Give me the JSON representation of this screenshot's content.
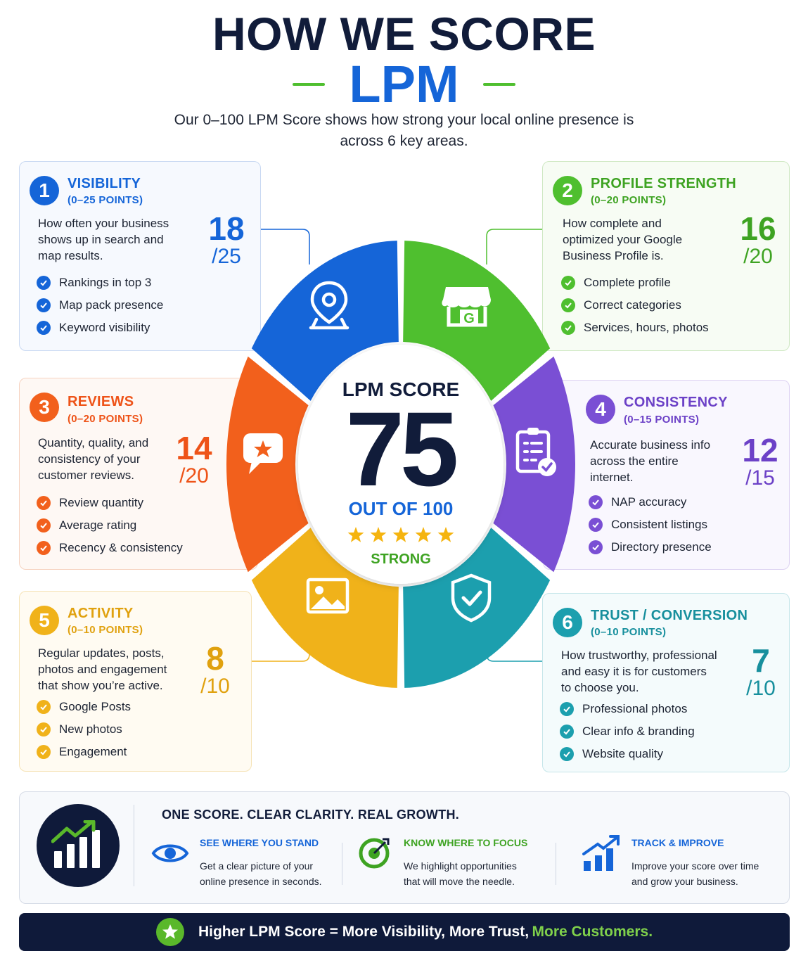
{
  "header": {
    "title_line1": "HOW WE SCORE",
    "title_line2": "LPM",
    "subtitle_line1": "Our 0–100 LPM Score shows how strong your local online presence is",
    "subtitle_line2": "across 6 key areas."
  },
  "colors": {
    "navy": "#111c3a",
    "blue": "#1565d8",
    "green": "#4fbf2f",
    "orange": "#f2601c",
    "purple": "#7a4fd4",
    "yellow": "#f0b21a",
    "teal": "#1c9fae"
  },
  "categories": [
    {
      "number": "1",
      "title": "VISIBILITY",
      "points": "(0–25 POINTS)",
      "description_lines": [
        "How often your business",
        "shows up in search and",
        "map results."
      ],
      "score": "18",
      "max": "/25",
      "items": [
        "Rankings in top 3",
        "Map pack presence",
        "Keyword visibility"
      ],
      "icon": "map-pin-icon"
    },
    {
      "number": "2",
      "title": "PROFILE STRENGTH",
      "points": "(0–20 POINTS)",
      "description_lines": [
        "How complete and",
        "optimized your Google",
        "Business Profile is."
      ],
      "score": "16",
      "max": "/20",
      "items": [
        "Complete profile",
        "Correct categories",
        "Services, hours, photos"
      ],
      "icon": "storefront-icon",
      "icon_letter": "G"
    },
    {
      "number": "3",
      "title": "REVIEWS",
      "points": "(0–20 POINTS)",
      "description_lines": [
        "Quantity, quality, and",
        "consistency of your",
        "customer reviews."
      ],
      "score": "14",
      "max": "/20",
      "items": [
        "Review quantity",
        "Average rating",
        "Recency & consistency"
      ],
      "icon": "review-bubble-icon"
    },
    {
      "number": "4",
      "title": "CONSISTENCY",
      "points": "(0–15 POINTS)",
      "description_lines": [
        "Accurate business info",
        "across the entire",
        "internet."
      ],
      "score": "12",
      "max": "/15",
      "items": [
        "NAP accuracy",
        "Consistent listings",
        "Directory presence"
      ],
      "icon": "clipboard-check-icon"
    },
    {
      "number": "5",
      "title": "ACTIVITY",
      "points": "(0–10 POINTS)",
      "description_lines": [
        "Regular updates, posts,",
        "photos and engagement",
        "that show you’re active."
      ],
      "score": "8",
      "max": "/10",
      "items": [
        "Google Posts",
        "New photos",
        "Engagement"
      ],
      "icon": "image-icon"
    },
    {
      "number": "6",
      "title": "TRUST / CONVERSION",
      "points": "(0–10 POINTS)",
      "description_lines": [
        "How trustworthy, professional",
        "and easy it is for customers",
        "to choose you."
      ],
      "score": "7",
      "max": "/10",
      "items": [
        "Professional photos",
        "Clear info & branding",
        "Website quality"
      ],
      "icon": "shield-check-icon"
    }
  ],
  "center": {
    "label": "LPM SCORE",
    "score": "75",
    "out_of": "OUT OF 100",
    "stars": 5,
    "rating": "STRONG"
  },
  "bottom_panel": {
    "heading": "ONE SCORE. CLEAR CLARITY. REAL GROWTH.",
    "features": [
      {
        "title": "SEE WHERE YOU STAND",
        "desc_line1": "Get a clear picture of your",
        "desc_line2": "online presence in seconds.",
        "icon": "eye-icon"
      },
      {
        "title": "KNOW WHERE TO FOCUS",
        "desc_line1": "We highlight opportunities",
        "desc_line2": "that will move the needle.",
        "icon": "target-icon"
      },
      {
        "title": "TRACK & IMPROVE",
        "desc_line1": "Improve your score over time",
        "desc_line2": "and grow your business.",
        "icon": "growth-chart-icon"
      }
    ]
  },
  "footer": {
    "text": "Higher LPM Score = More Visibility, More Trust,",
    "accent": "More Customers."
  }
}
